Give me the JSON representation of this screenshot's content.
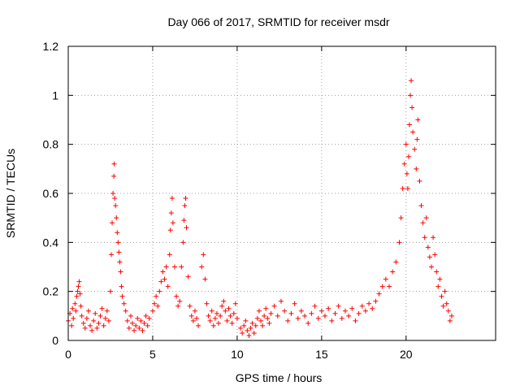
{
  "chart_data": {
    "type": "scatter",
    "title": "Day 066 of 2017, SRMTID for receiver msdr",
    "xlabel": "GPS time / hours",
    "ylabel": "SRMTID / TECUs",
    "xlim": [
      0,
      25.3
    ],
    "ylim": [
      0,
      1.2
    ],
    "x_ticks": [
      0,
      5,
      10,
      15,
      20
    ],
    "y_ticks": [
      0,
      0.2,
      0.4,
      0.6,
      0.8,
      1,
      1.2
    ],
    "x_tick_labels": [
      "0",
      "5",
      "10",
      "15",
      "20"
    ],
    "y_tick_labels": [
      "0",
      "0.2",
      "0.4",
      "0.6",
      "0.8",
      "1",
      "1.2"
    ],
    "grid": true,
    "marker": "+",
    "color": "#ff0000",
    "series": [
      {
        "name": "SRMTID",
        "points": [
          [
            0.0,
            0.08
          ],
          [
            0.1,
            0.11
          ],
          [
            0.2,
            0.06
          ],
          [
            0.25,
            0.13
          ],
          [
            0.3,
            0.09
          ],
          [
            0.4,
            0.15
          ],
          [
            0.45,
            0.12
          ],
          [
            0.5,
            0.18
          ],
          [
            0.55,
            0.2
          ],
          [
            0.6,
            0.22
          ],
          [
            0.65,
            0.24
          ],
          [
            0.7,
            0.19
          ],
          [
            0.75,
            0.14
          ],
          [
            0.8,
            0.1
          ],
          [
            0.9,
            0.07
          ],
          [
            1.0,
            0.05
          ],
          [
            1.1,
            0.09
          ],
          [
            1.2,
            0.12
          ],
          [
            1.3,
            0.06
          ],
          [
            1.4,
            0.04
          ],
          [
            1.5,
            0.08
          ],
          [
            1.6,
            0.11
          ],
          [
            1.7,
            0.05
          ],
          [
            1.8,
            0.07
          ],
          [
            1.9,
            0.1
          ],
          [
            2.0,
            0.13
          ],
          [
            2.1,
            0.06
          ],
          [
            2.2,
            0.09
          ],
          [
            2.3,
            0.12
          ],
          [
            2.4,
            0.08
          ],
          [
            2.5,
            0.2
          ],
          [
            2.55,
            0.35
          ],
          [
            2.6,
            0.48
          ],
          [
            2.65,
            0.6
          ],
          [
            2.7,
            0.67
          ],
          [
            2.72,
            0.72
          ],
          [
            2.75,
            0.58
          ],
          [
            2.8,
            0.55
          ],
          [
            2.85,
            0.5
          ],
          [
            2.9,
            0.44
          ],
          [
            2.95,
            0.4
          ],
          [
            3.0,
            0.36
          ],
          [
            3.05,
            0.32
          ],
          [
            3.1,
            0.28
          ],
          [
            3.15,
            0.22
          ],
          [
            3.2,
            0.18
          ],
          [
            3.3,
            0.15
          ],
          [
            3.4,
            0.12
          ],
          [
            3.5,
            0.08
          ],
          [
            3.6,
            0.05
          ],
          [
            3.7,
            0.1
          ],
          [
            3.8,
            0.07
          ],
          [
            3.9,
            0.04
          ],
          [
            4.0,
            0.06
          ],
          [
            4.1,
            0.09
          ],
          [
            4.2,
            0.05
          ],
          [
            4.3,
            0.08
          ],
          [
            4.4,
            0.04
          ],
          [
            4.5,
            0.07
          ],
          [
            4.6,
            0.1
          ],
          [
            4.7,
            0.06
          ],
          [
            4.8,
            0.09
          ],
          [
            5.0,
            0.12
          ],
          [
            5.1,
            0.15
          ],
          [
            5.2,
            0.18
          ],
          [
            5.3,
            0.14
          ],
          [
            5.4,
            0.2
          ],
          [
            5.5,
            0.24
          ],
          [
            5.6,
            0.28
          ],
          [
            5.7,
            0.25
          ],
          [
            5.8,
            0.3
          ],
          [
            5.9,
            0.22
          ],
          [
            6.0,
            0.35
          ],
          [
            6.05,
            0.45
          ],
          [
            6.1,
            0.52
          ],
          [
            6.15,
            0.58
          ],
          [
            6.2,
            0.48
          ],
          [
            6.3,
            0.3
          ],
          [
            6.4,
            0.18
          ],
          [
            6.5,
            0.14
          ],
          [
            6.6,
            0.16
          ],
          [
            6.7,
            0.3
          ],
          [
            6.8,
            0.4
          ],
          [
            6.85,
            0.49
          ],
          [
            6.9,
            0.55
          ],
          [
            6.95,
            0.58
          ],
          [
            7.0,
            0.46
          ],
          [
            7.1,
            0.26
          ],
          [
            7.2,
            0.14
          ],
          [
            7.3,
            0.1
          ],
          [
            7.4,
            0.08
          ],
          [
            7.5,
            0.12
          ],
          [
            7.6,
            0.09
          ],
          [
            7.7,
            0.06
          ],
          [
            7.9,
            0.3
          ],
          [
            8.0,
            0.35
          ],
          [
            8.1,
            0.25
          ],
          [
            8.2,
            0.15
          ],
          [
            8.3,
            0.1
          ],
          [
            8.4,
            0.08
          ],
          [
            8.5,
            0.12
          ],
          [
            8.6,
            0.06
          ],
          [
            8.7,
            0.09
          ],
          [
            8.8,
            0.11
          ],
          [
            8.9,
            0.07
          ],
          [
            9.0,
            0.1
          ],
          [
            9.1,
            0.14
          ],
          [
            9.2,
            0.16
          ],
          [
            9.3,
            0.12
          ],
          [
            9.4,
            0.08
          ],
          [
            9.5,
            0.13
          ],
          [
            9.6,
            0.1
          ],
          [
            9.7,
            0.07
          ],
          [
            9.8,
            0.11
          ],
          [
            9.9,
            0.15
          ],
          [
            10.0,
            0.09
          ],
          [
            10.2,
            0.05
          ],
          [
            10.3,
            0.03
          ],
          [
            10.4,
            0.06
          ],
          [
            10.5,
            0.08
          ],
          [
            10.6,
            0.04
          ],
          [
            10.7,
            0.02
          ],
          [
            10.8,
            0.05
          ],
          [
            10.9,
            0.07
          ],
          [
            11.0,
            0.03
          ],
          [
            11.1,
            0.06
          ],
          [
            11.2,
            0.09
          ],
          [
            11.3,
            0.12
          ],
          [
            11.4,
            0.08
          ],
          [
            11.5,
            0.06
          ],
          [
            11.6,
            0.1
          ],
          [
            11.7,
            0.13
          ],
          [
            11.8,
            0.09
          ],
          [
            11.9,
            0.07
          ],
          [
            12.0,
            0.11
          ],
          [
            12.2,
            0.14
          ],
          [
            12.4,
            0.1
          ],
          [
            12.6,
            0.16
          ],
          [
            12.8,
            0.12
          ],
          [
            13.0,
            0.08
          ],
          [
            13.2,
            0.11
          ],
          [
            13.4,
            0.15
          ],
          [
            13.6,
            0.09
          ],
          [
            13.8,
            0.12
          ],
          [
            14.0,
            0.1
          ],
          [
            14.2,
            0.07
          ],
          [
            14.4,
            0.11
          ],
          [
            14.6,
            0.14
          ],
          [
            14.8,
            0.09
          ],
          [
            15.0,
            0.12
          ],
          [
            15.2,
            0.1
          ],
          [
            15.4,
            0.13
          ],
          [
            15.6,
            0.08
          ],
          [
            15.8,
            0.11
          ],
          [
            16.0,
            0.14
          ],
          [
            16.2,
            0.09
          ],
          [
            16.4,
            0.12
          ],
          [
            16.6,
            0.1
          ],
          [
            16.8,
            0.13
          ],
          [
            17.0,
            0.08
          ],
          [
            17.2,
            0.11
          ],
          [
            17.4,
            0.14
          ],
          [
            17.6,
            0.12
          ],
          [
            17.8,
            0.15
          ],
          [
            18.0,
            0.13
          ],
          [
            18.2,
            0.16
          ],
          [
            18.4,
            0.19
          ],
          [
            18.6,
            0.22
          ],
          [
            18.8,
            0.25
          ],
          [
            19.0,
            0.22
          ],
          [
            19.2,
            0.28
          ],
          [
            19.4,
            0.32
          ],
          [
            19.6,
            0.4
          ],
          [
            19.7,
            0.5
          ],
          [
            19.8,
            0.62
          ],
          [
            19.9,
            0.72
          ],
          [
            20.0,
            0.8
          ],
          [
            20.05,
            0.68
          ],
          [
            20.1,
            0.62
          ],
          [
            20.15,
            0.75
          ],
          [
            20.2,
            0.88
          ],
          [
            20.25,
            1.0
          ],
          [
            20.3,
            1.06
          ],
          [
            20.35,
            0.95
          ],
          [
            20.4,
            0.85
          ],
          [
            20.5,
            0.78
          ],
          [
            20.6,
            0.7
          ],
          [
            20.65,
            0.82
          ],
          [
            20.7,
            0.9
          ],
          [
            20.8,
            0.65
          ],
          [
            20.9,
            0.55
          ],
          [
            21.0,
            0.48
          ],
          [
            21.1,
            0.42
          ],
          [
            21.2,
            0.5
          ],
          [
            21.3,
            0.38
          ],
          [
            21.4,
            0.34
          ],
          [
            21.5,
            0.3
          ],
          [
            21.6,
            0.42
          ],
          [
            21.7,
            0.35
          ],
          [
            21.8,
            0.28
          ],
          [
            21.9,
            0.22
          ],
          [
            22.0,
            0.25
          ],
          [
            22.1,
            0.18
          ],
          [
            22.2,
            0.14
          ],
          [
            22.3,
            0.2
          ],
          [
            22.4,
            0.15
          ],
          [
            22.5,
            0.12
          ],
          [
            22.6,
            0.08
          ],
          [
            22.7,
            0.1
          ]
        ]
      }
    ]
  }
}
